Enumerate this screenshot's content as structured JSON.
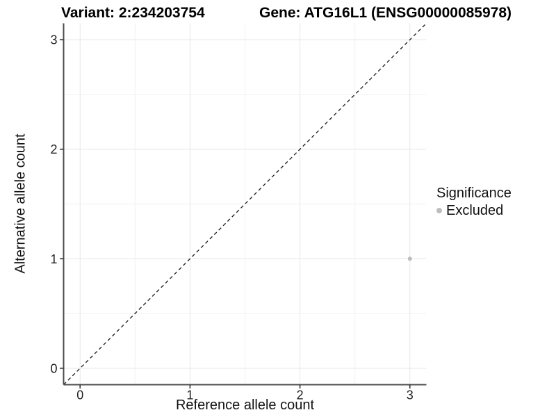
{
  "figure": {
    "background": "#ffffff"
  },
  "chart_data": {
    "type": "scatter",
    "title_variant": "Variant: 2:234203754",
    "title_gene": "Gene: ATG16L1 (ENSG00000085978)",
    "xlabel": "Reference allele count",
    "ylabel": "Alternative allele count",
    "xlim": [
      -0.15,
      3.15
    ],
    "ylim": [
      -0.15,
      3.15
    ],
    "x_ticks": [
      0,
      1,
      2,
      3
    ],
    "y_ticks": [
      0,
      1,
      2,
      3
    ],
    "x_tick_labels": [
      "0",
      "1",
      "2",
      "3"
    ],
    "y_tick_labels": [
      "0",
      "1",
      "2",
      "3"
    ],
    "grid": {
      "major": true,
      "minor": true,
      "major_color": "#e5e5e5",
      "minor_color": "#f0f0f0"
    },
    "axis_line_color": "#4d4d4d",
    "tick_color": "#333333",
    "identity_line": {
      "slope": 1,
      "intercept": 0,
      "style": "dashed",
      "color": "#1a1a1a"
    },
    "series": [
      {
        "name": "Excluded",
        "color": "#bdbdbd",
        "points": [
          {
            "x": 3,
            "y": 1
          }
        ]
      }
    ],
    "legend": {
      "title": "Significance",
      "position": "right",
      "entries": [
        {
          "label": "Excluded",
          "color": "#bdbdbd"
        }
      ]
    }
  }
}
